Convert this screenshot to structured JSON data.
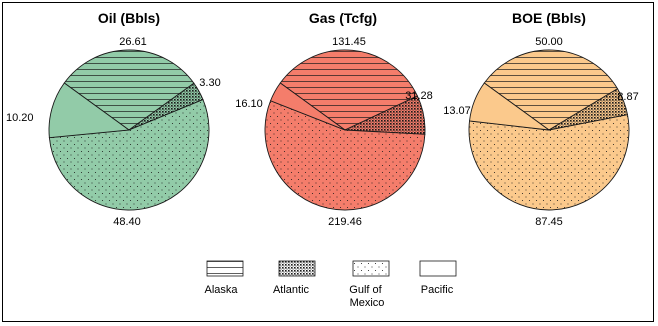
{
  "chart_data": [
    {
      "type": "pie",
      "title": "Oil (Bbls)",
      "slices": [
        {
          "label": "Alaska",
          "value": 26.61
        },
        {
          "label": "Atlantic",
          "value": 3.3
        },
        {
          "label": "Gulf of Mexico",
          "value": 48.4
        },
        {
          "label": "Pacific",
          "value": 10.2
        }
      ]
    },
    {
      "type": "pie",
      "title": "Gas (Tcfg)",
      "slices": [
        {
          "label": "Alaska",
          "value": 131.45
        },
        {
          "label": "Atlantic",
          "value": 31.28
        },
        {
          "label": "Gulf of Mexico",
          "value": 219.46
        },
        {
          "label": "Pacific",
          "value": 16.1
        }
      ]
    },
    {
      "type": "pie",
      "title": "BOE (Bbls)",
      "slices": [
        {
          "label": "Alaska",
          "value": 50.0
        },
        {
          "label": "Atlantic",
          "value": 8.87
        },
        {
          "label": "Gulf of Mexico",
          "value": 87.45
        },
        {
          "label": "Pacific",
          "value": 13.07
        }
      ]
    }
  ],
  "legend": [
    {
      "label": "Alaska",
      "pattern": "horizontal-lines"
    },
    {
      "label": "Atlantic",
      "pattern": "crosshatch"
    },
    {
      "label": "Gulf of Mexico",
      "pattern": "dots"
    },
    {
      "label": "Pacific",
      "pattern": "plain"
    }
  ],
  "colors": {
    "oil": "#92cba8",
    "gas": "#f47d6b",
    "boe": "#fbc98c",
    "pattern_ink": "#1a1a1a"
  }
}
